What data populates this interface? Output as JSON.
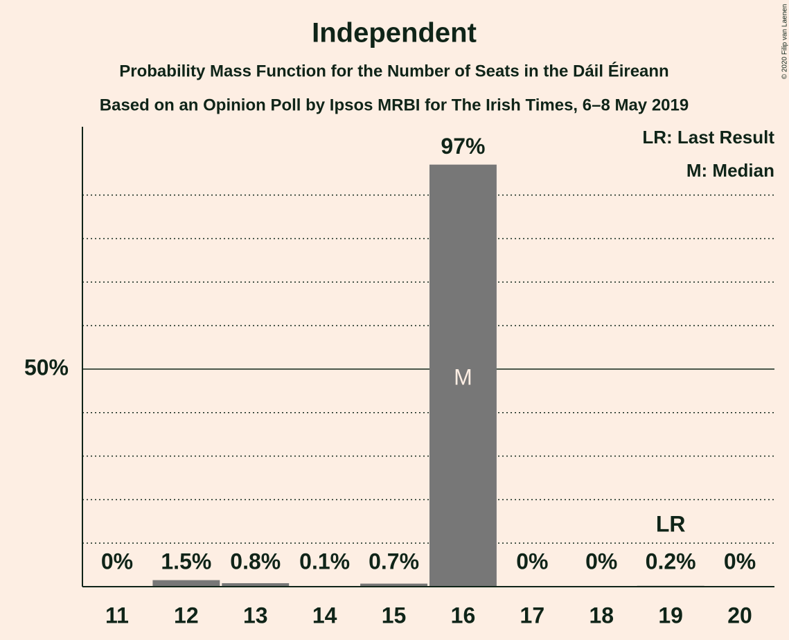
{
  "chart_data": {
    "type": "bar",
    "title": "Independent",
    "subtitle": "Probability Mass Function for the Number of Seats in the Dáil Éireann",
    "subtitle2": "Based on an Opinion Poll by Ipsos MRBI for The Irish Times, 6–8 May 2019",
    "categories": [
      11,
      12,
      13,
      14,
      15,
      16,
      17,
      18,
      19,
      20
    ],
    "values": [
      0,
      1.5,
      0.8,
      0.1,
      0.7,
      97,
      0,
      0,
      0.2,
      0
    ],
    "value_labels": [
      "0%",
      "1.5%",
      "0.8%",
      "0.1%",
      "0.7%",
      "97%",
      "0%",
      "0%",
      "0.2%",
      "0%"
    ],
    "color": "#777777",
    "ylim": [
      0,
      105.7
    ],
    "yticks": [
      {
        "value": 50,
        "label": "50%"
      }
    ],
    "gridlines": [
      10,
      20,
      30,
      40,
      60,
      70,
      80,
      90
    ],
    "markers": [
      {
        "label": "M",
        "category": 16
      },
      {
        "label": "LR",
        "category": 19
      }
    ],
    "legend": [
      "LR: Last Result",
      "M: Median"
    ],
    "legend_position": "upper right",
    "copyright": "© 2020 Filip van Laenen"
  }
}
